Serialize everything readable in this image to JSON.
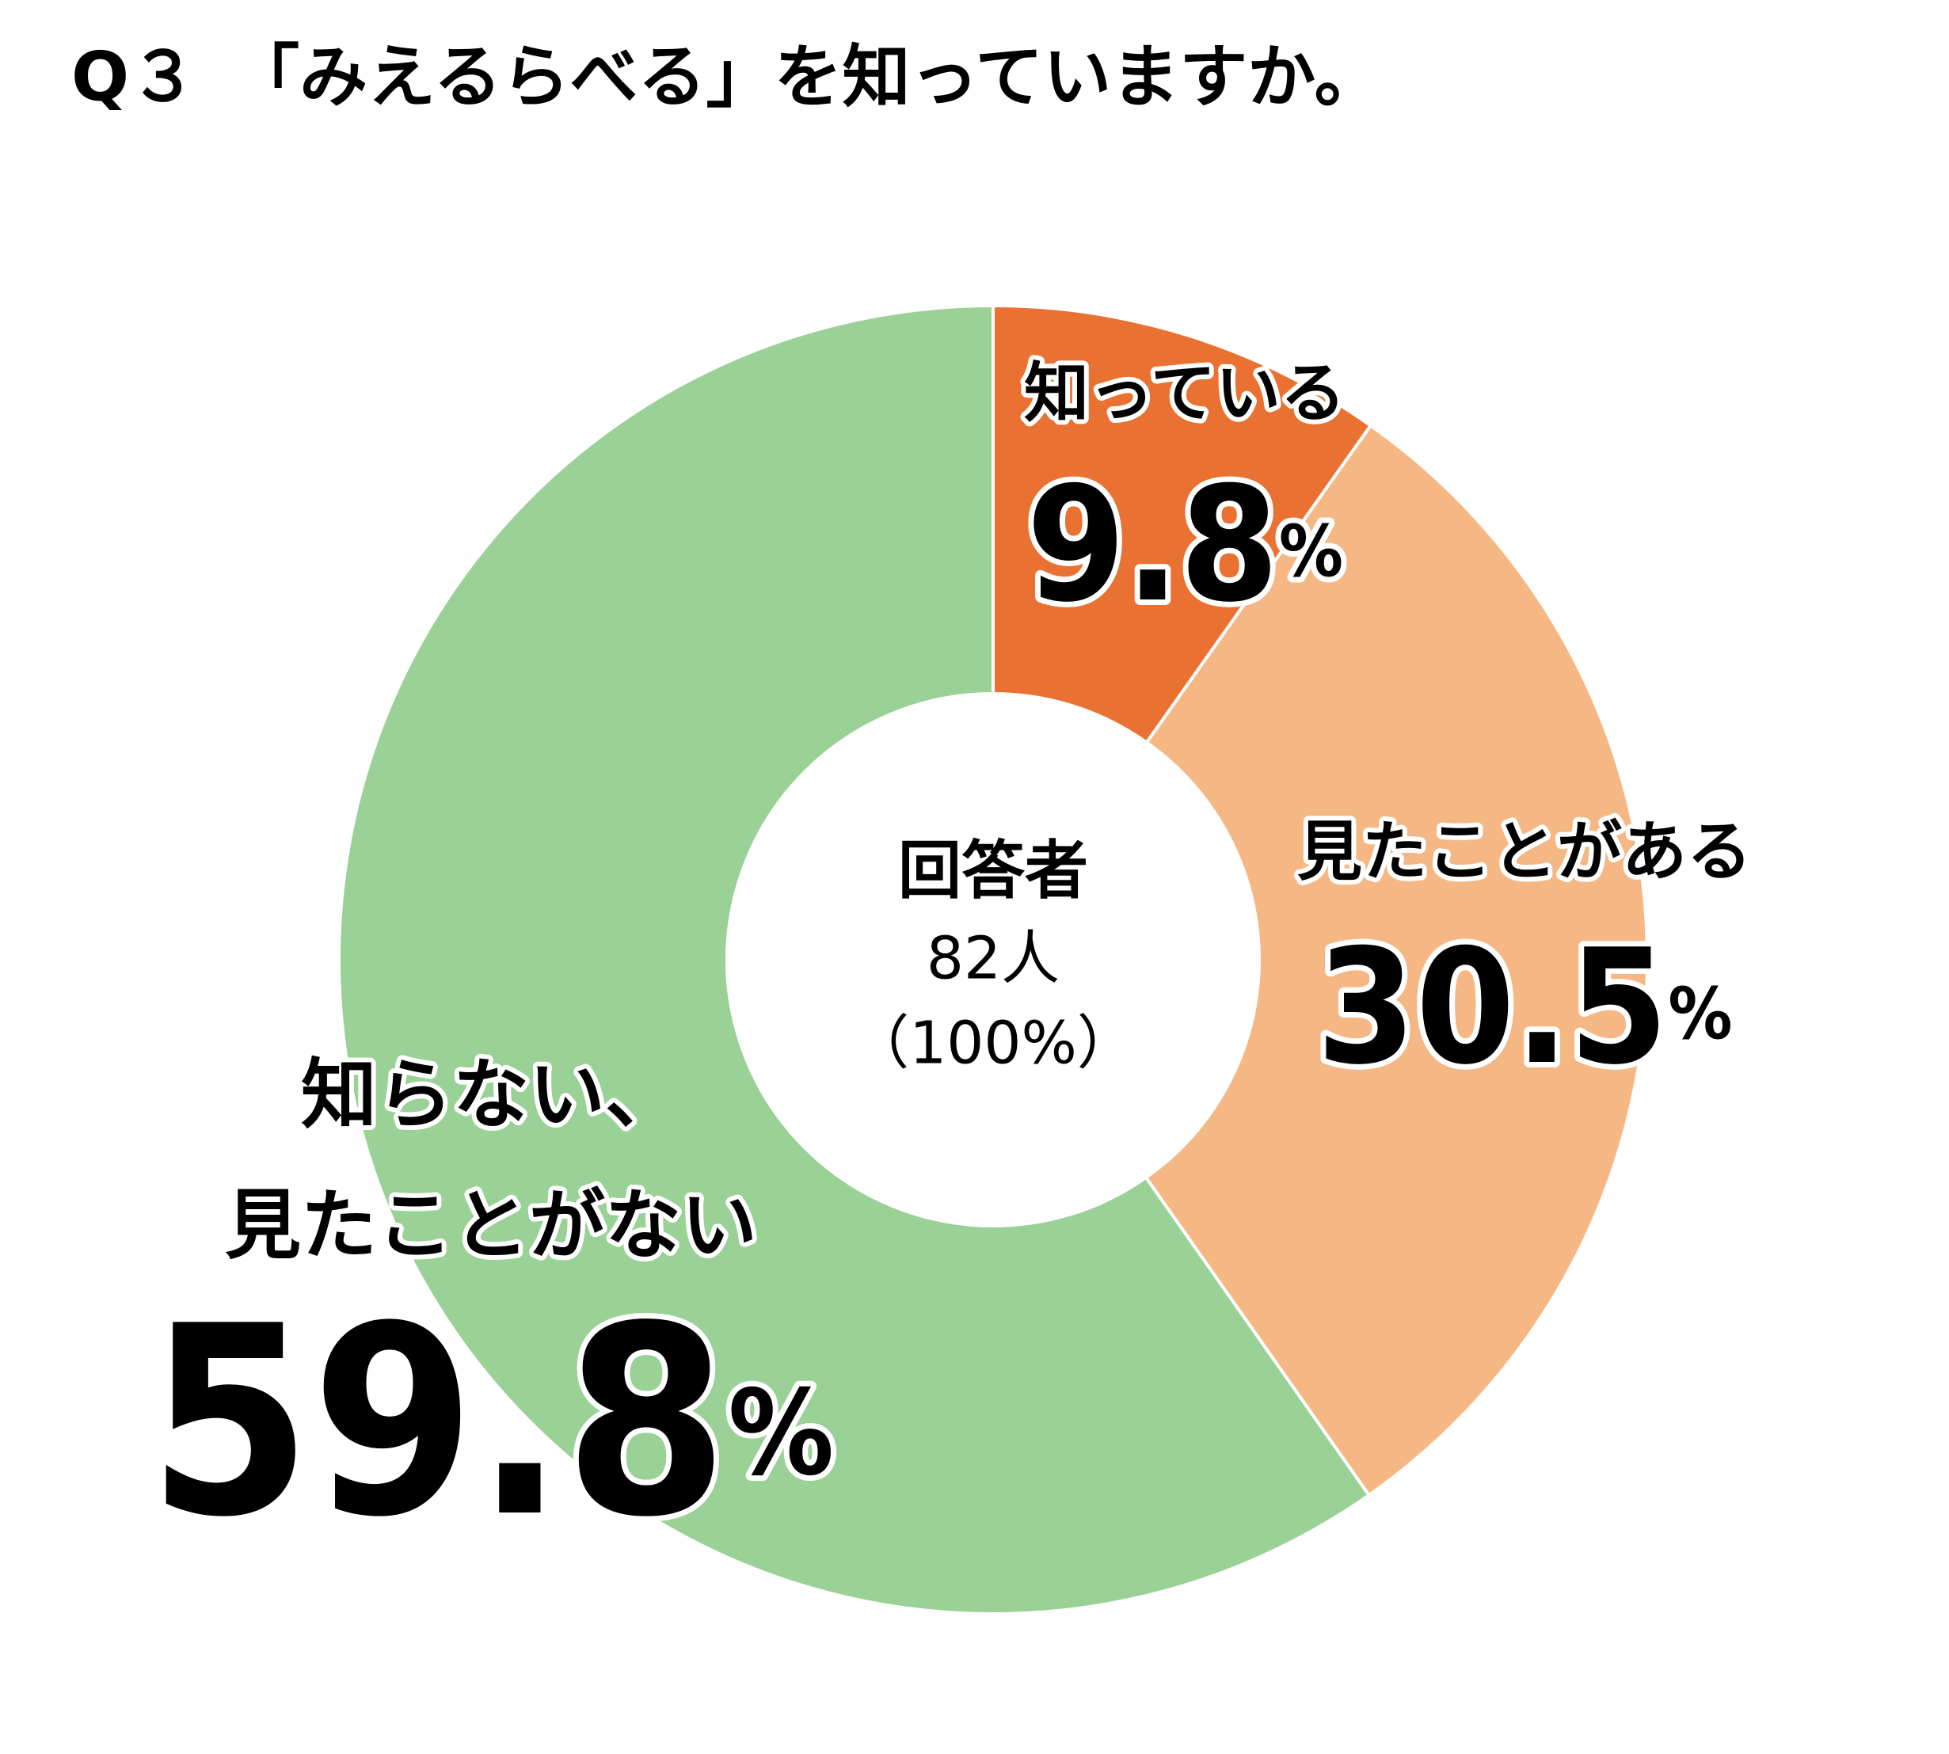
{
  "chart_data": {
    "type": "pie",
    "title": "Q３　「みえるらべる」を知っていますか。",
    "categories": [
      [
        "知っている"
      ],
      [
        "見たことがある"
      ],
      [
        "知らない、",
        "見たことがない"
      ]
    ],
    "values": [
      9.8,
      30.5,
      59.8
    ],
    "value_labels": [
      "9.8%",
      "30.5%",
      "59.8%"
    ],
    "colors": [
      "#e97132",
      "#f5b885",
      "#9ad196"
    ],
    "center_text": [
      "回答者",
      "82人",
      "（100%）"
    ]
  }
}
